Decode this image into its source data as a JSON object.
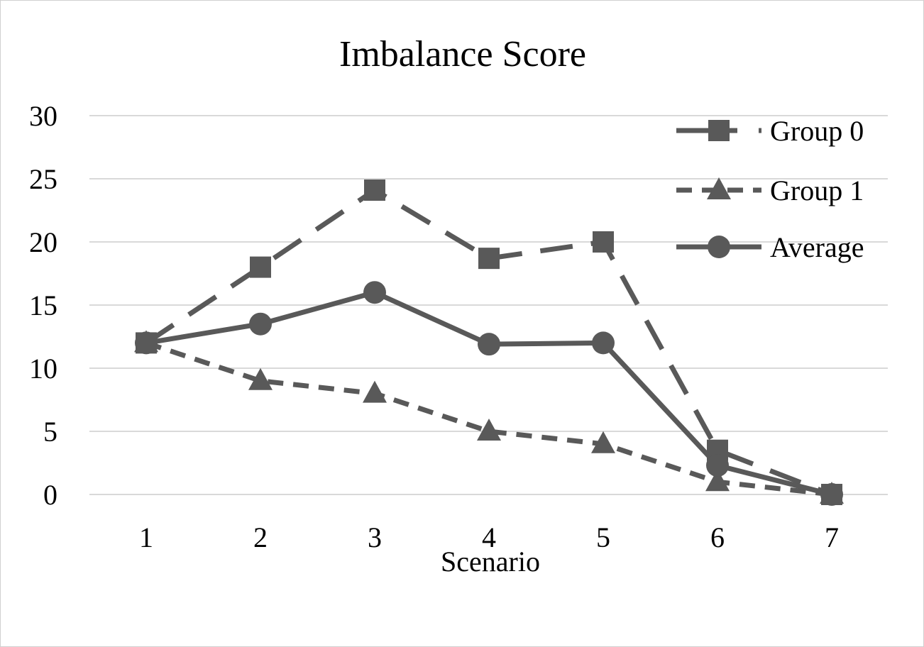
{
  "chart_data": {
    "type": "line",
    "title": "Imbalance Score",
    "xlabel": "Scenario",
    "ylabel": "",
    "categories": [
      "1",
      "2",
      "3",
      "4",
      "5",
      "6",
      "7"
    ],
    "ylim": [
      0,
      30
    ],
    "yticks": [
      0,
      5,
      10,
      15,
      20,
      25,
      30
    ],
    "grid": true,
    "legend_position": "top-right",
    "line_color": "#595959",
    "series": [
      {
        "name": "Group 0",
        "marker": "square",
        "dash": "long-dash",
        "values": [
          12,
          18,
          24.1,
          18.7,
          20,
          3.5,
          0
        ]
      },
      {
        "name": "Group 1",
        "marker": "triangle",
        "dash": "dash",
        "values": [
          12,
          9,
          8,
          5,
          4,
          1,
          0
        ]
      },
      {
        "name": "Average",
        "marker": "circle",
        "dash": "solid",
        "values": [
          12,
          13.5,
          16,
          11.9,
          12,
          2.3,
          0
        ]
      }
    ]
  }
}
